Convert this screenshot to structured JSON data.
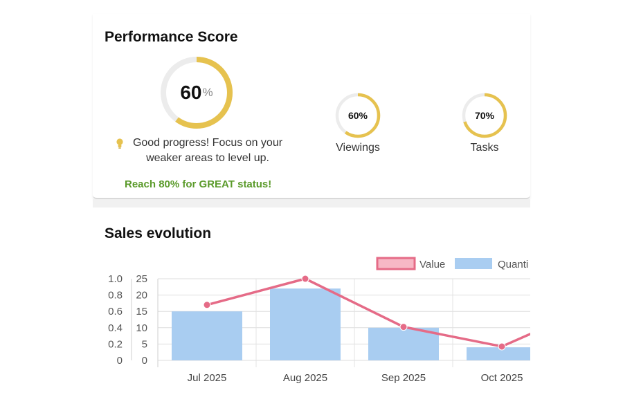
{
  "performance": {
    "title": "Performance Score",
    "main_score": {
      "value": "60",
      "unit": "%",
      "percent": 60
    },
    "tip_icon": "lightbulb-icon",
    "tip_line1": "Good progress! Focus on your",
    "tip_line2": "weaker areas to level up.",
    "status_message": "Reach 80% for GREAT status!",
    "metrics": [
      {
        "label": "Viewings",
        "value_text": "60%",
        "percent": 60
      },
      {
        "label": "Tasks",
        "value_text": "70%",
        "percent": 70
      }
    ],
    "colors": {
      "accent": "#e6c24f",
      "track": "#ececec",
      "status_text": "#5a9a2a"
    }
  },
  "sales": {
    "title": "Sales evolution",
    "chart_data": {
      "type": "bar",
      "categories": [
        "Jul 2025",
        "Aug 2025",
        "Sep 2025",
        "Oct 2025"
      ],
      "series": [
        {
          "name": "Value",
          "type": "line",
          "axis": "left",
          "color": "#e56b87",
          "values": [
            0.68,
            1.0,
            0.41,
            0.17
          ]
        },
        {
          "name": "Quanti",
          "type": "bar",
          "axis": "right",
          "color": "#a9cdf1",
          "values": [
            15,
            22,
            10,
            4
          ]
        }
      ],
      "left_axis": {
        "ylim": [
          0,
          1.0
        ],
        "ticks": [
          "1.0",
          "0.8",
          "0.6",
          "0.4",
          "0.2",
          "0"
        ]
      },
      "right_axis": {
        "ylim": [
          0,
          25
        ],
        "ticks": [
          "25",
          "20",
          "15",
          "10",
          "5",
          "0"
        ]
      },
      "grid": true,
      "legend_position": "top-right"
    }
  }
}
